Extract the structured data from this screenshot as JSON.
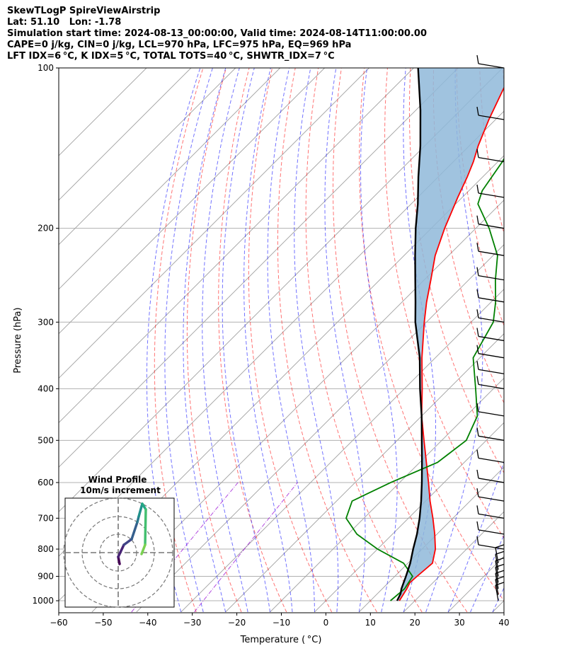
{
  "header": {
    "title": "SkewTLogP SpireViewAirstrip",
    "location": "Lat: 51.10   Lon: -1.78",
    "times": "Simulation start time: 2024-08-13_00:00:00, Valid time: 2024-08-14T11:00:00.00",
    "indices_1": "CAPE=0 j/kg, CIN=0 j/kg, LCL=970 hPa, LFC=975 hPa, EQ=969 hPa",
    "indices_2": "LFT IDX=6 °C, K IDX=5 °C, TOTAL TOTS=40 °C, SHWTR_IDX=7 °C"
  },
  "colors": {
    "temperature": "#ff0000",
    "dewpoint": "#008000",
    "parcel": "#000000",
    "cape_fill": "#8fb9d9",
    "dry_adiabat": "#ff0000",
    "moist_adiabat": "#0000ff",
    "mixing_ratio": "#9400d3",
    "isotherm": "#a0a0a0"
  },
  "chart_data": {
    "type": "line",
    "xlabel": "Temperature ( °C)",
    "ylabel": "Pressure (hPa)",
    "xlim": [
      -60,
      40
    ],
    "ylim": [
      1050,
      100
    ],
    "y_scale": "log",
    "x_ticks": [
      "−60",
      "−50",
      "−40",
      "−30",
      "−20",
      "−10",
      "0",
      "10",
      "20",
      "30",
      "40"
    ],
    "y_ticks": [
      "100",
      "200",
      "300",
      "400",
      "500",
      "600",
      "700",
      "800",
      "900",
      "1000"
    ],
    "grid": true,
    "series": [
      {
        "key": "temperature",
        "pressure": [
          1000,
          950,
          925,
          900,
          850,
          800,
          750,
          700,
          650,
          600,
          550,
          500,
          450,
          400,
          350,
          300,
          275,
          250,
          225,
          200,
          175,
          160,
          150,
          140,
          125,
          110,
          100
        ],
        "values": [
          16.5,
          15.5,
          14.8,
          15.0,
          15.5,
          13.0,
          9.5,
          5.5,
          1.0,
          -3.5,
          -8.5,
          -14.0,
          -20.0,
          -26.0,
          -33.0,
          -40.5,
          -44.5,
          -48.5,
          -53.0,
          -57.0,
          -61.0,
          -63.5,
          -65.5,
          -68.0,
          -71.5,
          -75.0,
          -77.5
        ]
      },
      {
        "key": "dewpoint",
        "pressure": [
          1000,
          950,
          925,
          900,
          850,
          800,
          750,
          700,
          650,
          600,
          550,
          500,
          450,
          400,
          350,
          300,
          275,
          250,
          225,
          200,
          180,
          170,
          150,
          125,
          110,
          100
        ],
        "values": [
          14.5,
          15.0,
          14.5,
          14.0,
          9.0,
          0.0,
          -8.0,
          -14.0,
          -16.5,
          -12.0,
          -6.0,
          -4.5,
          -7.5,
          -14.0,
          -21.5,
          -25.0,
          -29.0,
          -34.0,
          -39.0,
          -47.0,
          -55.0,
          -57.0,
          -59.0,
          -63.0,
          -66.0,
          -68.0
        ]
      },
      {
        "key": "parcel",
        "pressure": [
          1000,
          970,
          950,
          900,
          850,
          800,
          750,
          700,
          650,
          600,
          550,
          500,
          450,
          400,
          350,
          300,
          275,
          250,
          225,
          200,
          180,
          160,
          140,
          120,
          100
        ],
        "values": [
          16.0,
          15.2,
          14.3,
          12.5,
          10.5,
          8.0,
          5.5,
          2.5,
          -1.0,
          -5.0,
          -9.5,
          -14.5,
          -20.0,
          -26.5,
          -33.5,
          -42.5,
          -47.0,
          -52.0,
          -57.5,
          -63.5,
          -68.5,
          -74.5,
          -81.0,
          -89.0,
          -99.0
        ]
      }
    ],
    "wind_barbs": {
      "pressure": [
        100,
        125,
        150,
        175,
        200,
        225,
        250,
        275,
        300,
        325,
        350,
        375,
        400,
        450,
        500,
        550,
        600,
        650,
        700,
        750,
        800,
        850,
        875,
        900,
        925,
        950,
        975,
        1000
      ]
    },
    "hodograph": {
      "title": "Wind Profile",
      "subtitle": "10m/s increment"
    }
  }
}
